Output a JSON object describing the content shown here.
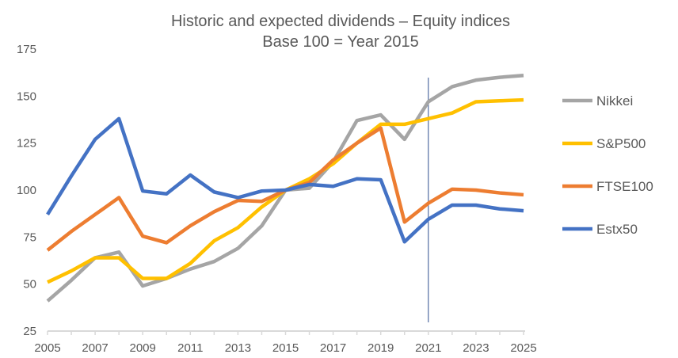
{
  "chart_data": {
    "type": "line",
    "title": "Historic and expected dividends – Equity indices",
    "subtitle": "Base 100 = Year 2015",
    "xlabel": "",
    "ylabel": "",
    "x": [
      2005,
      2006,
      2007,
      2008,
      2009,
      2010,
      2011,
      2012,
      2013,
      2014,
      2015,
      2016,
      2017,
      2018,
      2019,
      2020,
      2021,
      2022,
      2023,
      2024,
      2025
    ],
    "xticks": [
      2005,
      2007,
      2009,
      2011,
      2013,
      2015,
      2017,
      2019,
      2021,
      2023,
      2025
    ],
    "yticks": [
      25,
      50,
      75,
      100,
      125,
      150,
      175
    ],
    "ylim": [
      25,
      175
    ],
    "xlim": [
      2005,
      2025
    ],
    "grid": false,
    "legend": "right",
    "vertical_marker": 2021,
    "series": [
      {
        "name": "Nikkei",
        "color": "#A5A5A5",
        "values": [
          41,
          52,
          64,
          67,
          49,
          53,
          58,
          62,
          69,
          81,
          100,
          101,
          115,
          137,
          140,
          127,
          147,
          155,
          158.5,
          160,
          161
        ]
      },
      {
        "name": "S&P500",
        "color": "#FFC000",
        "values": [
          51,
          57,
          64,
          64,
          53,
          53,
          61,
          73,
          80,
          91,
          100,
          106,
          114,
          125,
          135,
          135,
          138,
          141,
          147,
          147.5,
          148
        ]
      },
      {
        "name": "FTSE100",
        "color": "#ED7D31",
        "values": [
          68,
          78,
          87,
          96,
          75.5,
          72,
          81,
          88.5,
          94.5,
          94,
          100,
          104,
          116,
          125,
          133,
          83,
          93,
          100.5,
          100,
          98.5,
          97.5
        ]
      },
      {
        "name": "Estx50",
        "color": "#4472C4",
        "values": [
          87,
          107.5,
          127,
          138,
          99.5,
          98,
          108,
          99,
          96,
          99.5,
          100,
          103,
          102,
          106,
          105.5,
          72.5,
          84.5,
          92,
          92,
          90,
          89
        ]
      }
    ]
  }
}
